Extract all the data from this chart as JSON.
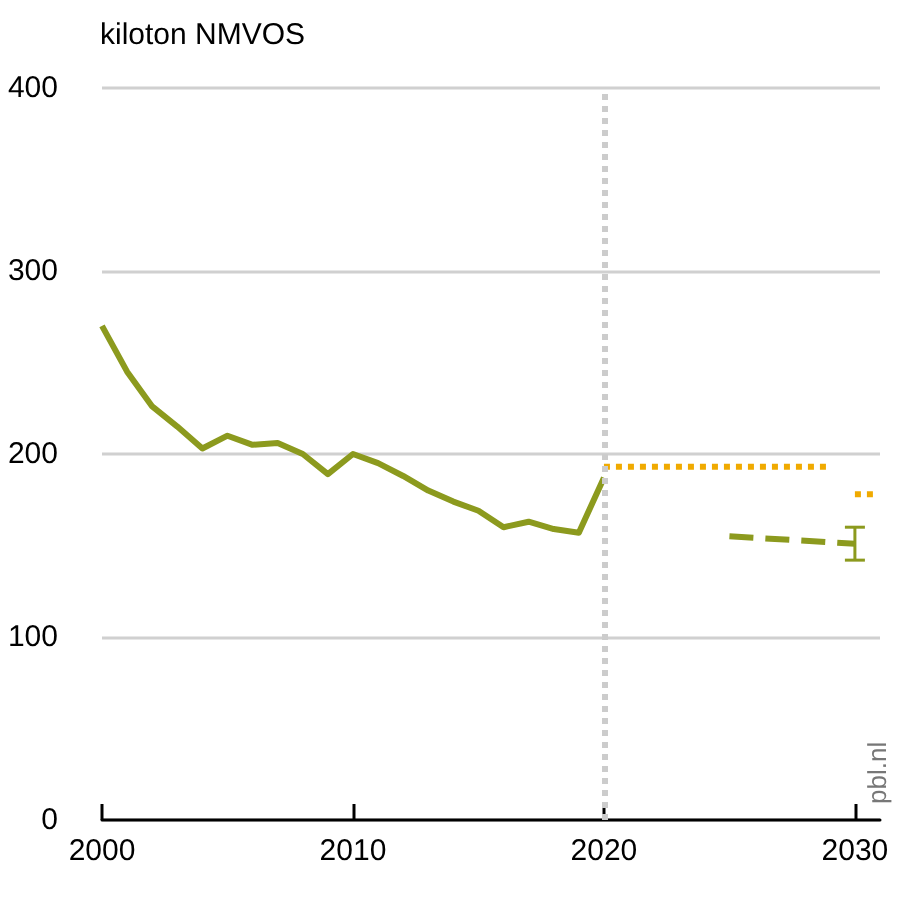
{
  "chart_data": {
    "type": "line",
    "ylabel": "kiloton NMVOS",
    "xlim": [
      2000,
      2031
    ],
    "xticks": [
      2000,
      2010,
      2020,
      2030
    ],
    "ylim": [
      0,
      400
    ],
    "yticks": [
      0,
      100,
      200,
      300,
      400
    ],
    "grid": "y",
    "marker": "none",
    "series": [
      {
        "color": "#8c9a1e",
        "line_style": "solid",
        "x": [
          2000,
          2001,
          2002,
          2003,
          2004,
          2005,
          2006,
          2007,
          2008,
          2009,
          2010,
          2011,
          2012,
          2013,
          2014,
          2015,
          2016,
          2017,
          2018,
          2019,
          2020
        ],
        "values": [
          270,
          245,
          226,
          215,
          203,
          210,
          205,
          206,
          200,
          189,
          200,
          195,
          188,
          180,
          174,
          169,
          160,
          163,
          159,
          157,
          187
        ]
      },
      {
        "color": "#f0aa00",
        "line_style": "dotted",
        "x": [
          2020,
          2029
        ],
        "values": [
          193,
          193
        ]
      },
      {
        "color": "#f0aa00",
        "line_style": "dotted",
        "x": [
          2030,
          2030.8
        ],
        "values": [
          178,
          178
        ]
      },
      {
        "color": "#8c9a1e",
        "line_style": "dashed",
        "x": [
          2025,
          2030
        ],
        "values": [
          155,
          151
        ],
        "errors": [
          null,
          [
            142,
            160
          ]
        ]
      }
    ],
    "ref_lines": [
      {
        "axis": "x",
        "value": 2020,
        "color": "#cccccc",
        "line_style": "dotted"
      }
    ],
    "annotations": [
      "pbl.nl"
    ]
  }
}
